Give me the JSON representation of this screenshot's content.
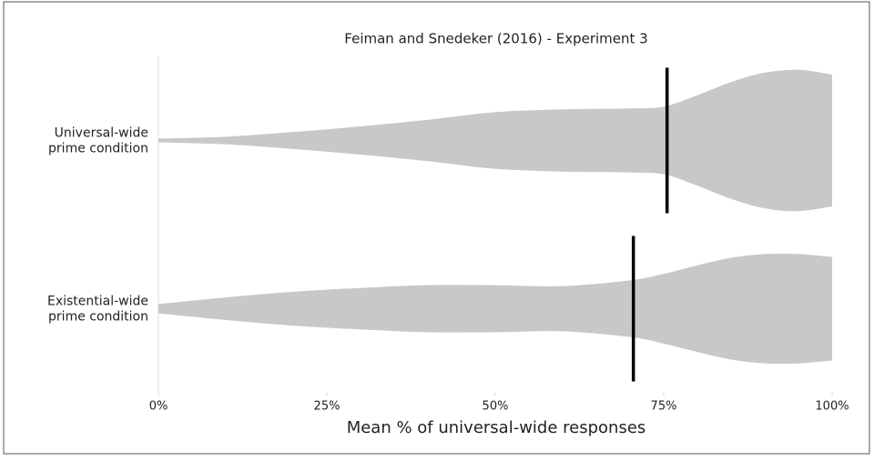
{
  "chart_data": {
    "type": "violin",
    "title": "Feiman and Snedeker (2016) - Experiment 3",
    "x_label": "Mean % of universal-wide responses",
    "categories": [
      [
        "Universal-wide",
        "prime condition"
      ],
      [
        "Existential-wide",
        "prime condition"
      ]
    ],
    "x_grid": [
      0,
      10,
      20,
      30,
      40,
      50,
      60,
      70,
      75,
      80,
      85,
      90,
      95,
      100
    ],
    "density": [
      [
        2,
        4,
        9,
        15,
        22,
        30,
        33,
        34,
        36,
        48,
        62,
        72,
        75,
        70
      ],
      [
        5,
        12,
        18,
        22,
        25,
        25,
        24,
        30,
        37,
        46,
        54,
        58,
        58,
        55
      ]
    ],
    "means": [
      75.5,
      70.5
    ],
    "color": "#c8c8c8",
    "mean_color": "#000000",
    "xlim": [
      0,
      100
    ],
    "xticks": [
      {
        "value": 0,
        "label": "0%"
      },
      {
        "value": 25,
        "label": "25%"
      },
      {
        "value": 50,
        "label": "50%"
      },
      {
        "value": 75,
        "label": "75%"
      },
      {
        "value": 100,
        "label": "100%"
      }
    ]
  }
}
